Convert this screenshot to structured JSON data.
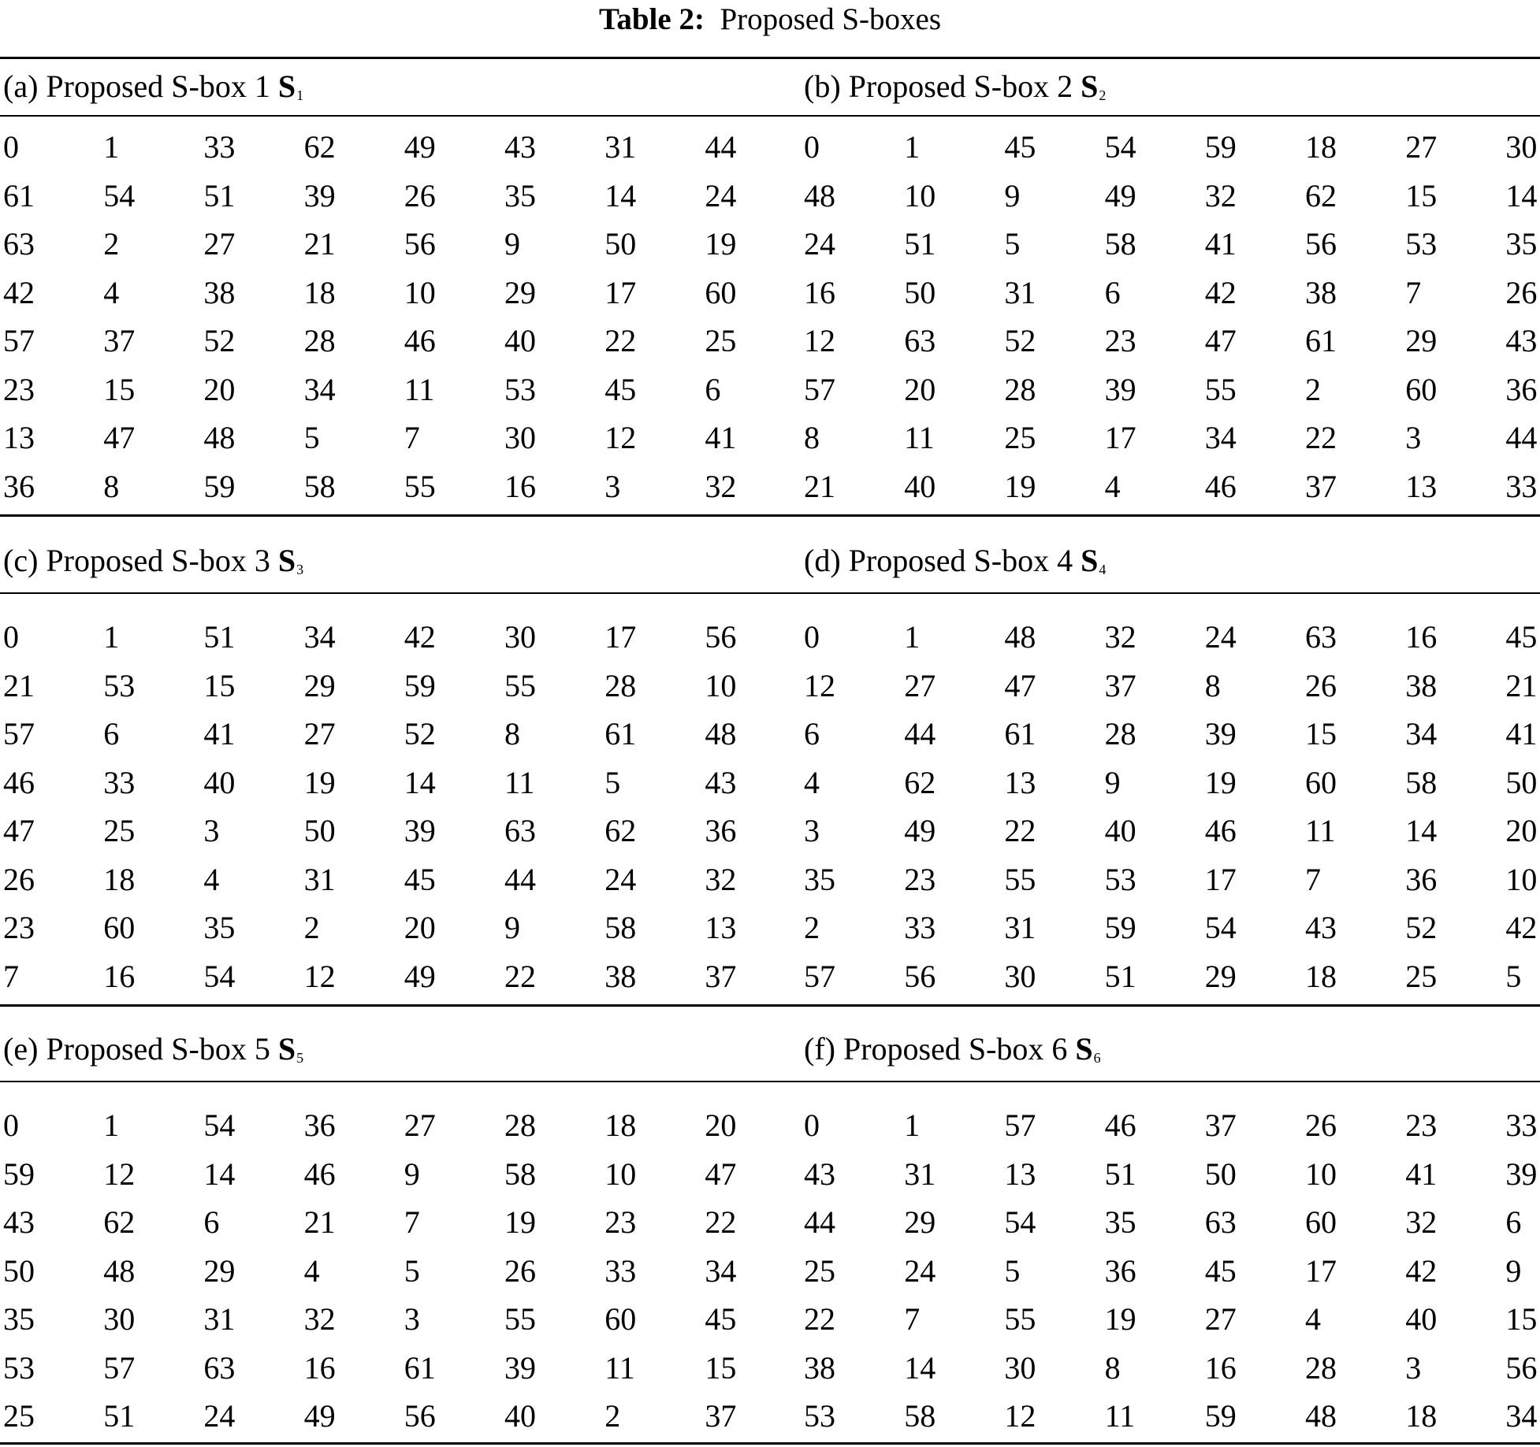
{
  "caption": {
    "label": "Table 2:",
    "title": "Proposed S-boxes"
  },
  "sboxes": [
    {
      "caption": "(a) Proposed S-box 1",
      "symbol": "S",
      "index": "1",
      "rows": [
        [
          0,
          1,
          33,
          62,
          49,
          43,
          31,
          44
        ],
        [
          61,
          54,
          51,
          39,
          26,
          35,
          14,
          24
        ],
        [
          63,
          2,
          27,
          21,
          56,
          9,
          50,
          19
        ],
        [
          42,
          4,
          38,
          18,
          10,
          29,
          17,
          60
        ],
        [
          57,
          37,
          52,
          28,
          46,
          40,
          22,
          25
        ],
        [
          23,
          15,
          20,
          34,
          11,
          53,
          45,
          6
        ],
        [
          13,
          47,
          48,
          5,
          7,
          30,
          12,
          41
        ],
        [
          36,
          8,
          59,
          58,
          55,
          16,
          3,
          32
        ]
      ]
    },
    {
      "caption": "(b) Proposed S-box 2",
      "symbol": "S",
      "index": "2",
      "rows": [
        [
          0,
          1,
          45,
          54,
          59,
          18,
          27,
          30
        ],
        [
          48,
          10,
          9,
          49,
          32,
          62,
          15,
          14
        ],
        [
          24,
          51,
          5,
          58,
          41,
          56,
          53,
          35
        ],
        [
          16,
          50,
          31,
          6,
          42,
          38,
          7,
          26
        ],
        [
          12,
          63,
          52,
          23,
          47,
          61,
          29,
          43
        ],
        [
          57,
          20,
          28,
          39,
          55,
          2,
          60,
          36
        ],
        [
          8,
          11,
          25,
          17,
          34,
          22,
          3,
          44
        ],
        [
          21,
          40,
          19,
          4,
          46,
          37,
          13,
          33
        ]
      ]
    },
    {
      "caption": "(c) Proposed S-box 3",
      "symbol": "S",
      "index": "3",
      "rows": [
        [
          0,
          1,
          51,
          34,
          42,
          30,
          17,
          56
        ],
        [
          21,
          53,
          15,
          29,
          59,
          55,
          28,
          10
        ],
        [
          57,
          6,
          41,
          27,
          52,
          8,
          61,
          48
        ],
        [
          46,
          33,
          40,
          19,
          14,
          11,
          5,
          43
        ],
        [
          47,
          25,
          3,
          50,
          39,
          63,
          62,
          36
        ],
        [
          26,
          18,
          4,
          31,
          45,
          44,
          24,
          32
        ],
        [
          23,
          60,
          35,
          2,
          20,
          9,
          58,
          13
        ],
        [
          7,
          16,
          54,
          12,
          49,
          22,
          38,
          37
        ]
      ]
    },
    {
      "caption": "(d) Proposed S-box 4",
      "symbol": "S",
      "index": "4",
      "rows": [
        [
          0,
          1,
          48,
          32,
          24,
          63,
          16,
          45
        ],
        [
          12,
          27,
          47,
          37,
          8,
          26,
          38,
          21
        ],
        [
          6,
          44,
          61,
          28,
          39,
          15,
          34,
          41
        ],
        [
          4,
          62,
          13,
          9,
          19,
          60,
          58,
          50
        ],
        [
          3,
          49,
          22,
          40,
          46,
          11,
          14,
          20
        ],
        [
          35,
          23,
          55,
          53,
          17,
          7,
          36,
          10
        ],
        [
          2,
          33,
          31,
          59,
          54,
          43,
          52,
          42
        ],
        [
          57,
          56,
          30,
          51,
          29,
          18,
          25,
          5
        ]
      ]
    },
    {
      "caption": "(e) Proposed S-box 5",
      "symbol": "S",
      "index": "5",
      "rows": [
        [
          0,
          1,
          54,
          36,
          27,
          28,
          18,
          20
        ],
        [
          59,
          12,
          14,
          46,
          9,
          58,
          10,
          47
        ],
        [
          43,
          62,
          6,
          21,
          7,
          19,
          23,
          22
        ],
        [
          50,
          48,
          29,
          4,
          5,
          26,
          33,
          34
        ],
        [
          35,
          30,
          31,
          32,
          3,
          55,
          60,
          45
        ],
        [
          53,
          57,
          63,
          16,
          61,
          39,
          11,
          15
        ],
        [
          25,
          51,
          24,
          49,
          56,
          40,
          2,
          37
        ]
      ]
    },
    {
      "caption": "(f) Proposed S-box 6",
      "symbol": "S",
      "index": "6",
      "rows": [
        [
          0,
          1,
          57,
          46,
          37,
          26,
          23,
          33
        ],
        [
          43,
          31,
          13,
          51,
          50,
          10,
          41,
          39
        ],
        [
          44,
          29,
          54,
          35,
          63,
          60,
          32,
          6
        ],
        [
          25,
          24,
          5,
          36,
          45,
          17,
          42,
          9
        ],
        [
          22,
          7,
          55,
          19,
          27,
          4,
          40,
          15
        ],
        [
          38,
          14,
          30,
          8,
          16,
          28,
          3,
          56
        ],
        [
          53,
          58,
          12,
          11,
          59,
          48,
          18,
          34
        ]
      ]
    }
  ]
}
